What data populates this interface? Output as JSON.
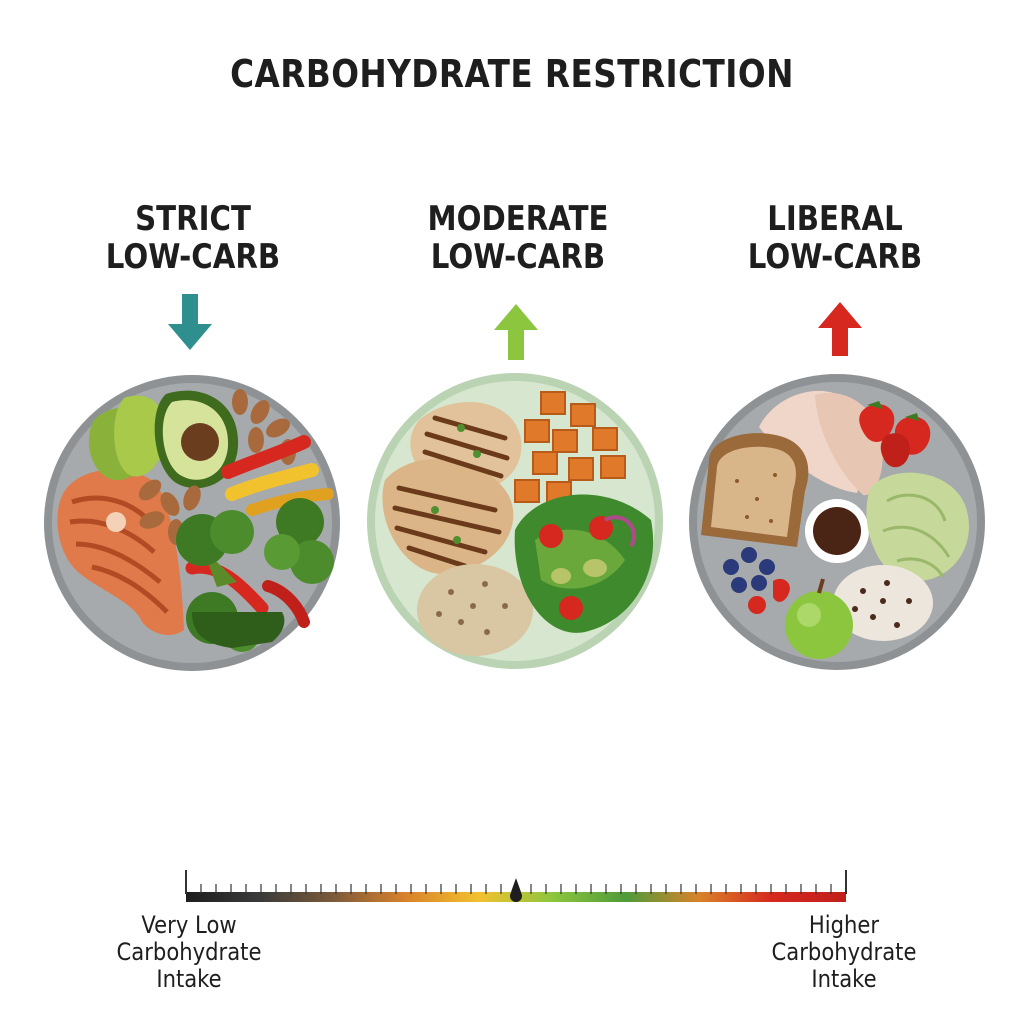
{
  "title": "CARBOHYDRATE RESTRICTION",
  "levels": [
    {
      "line1": "STRICT",
      "line2": "LOW-CARB",
      "arrow_direction": "down",
      "arrow_color": "#2f8f8f"
    },
    {
      "line1": "MODERATE",
      "line2": "LOW-CARB",
      "arrow_direction": "up",
      "arrow_color": "#8cc63f"
    },
    {
      "line1": "LIBERAL",
      "line2": "LOW-CARB",
      "arrow_direction": "up",
      "arrow_color": "#d6281e"
    }
  ],
  "scale": {
    "left_label": [
      "Very Low",
      "Carbohydrate",
      "Intake"
    ],
    "right_label": [
      "Higher",
      "Carbohydrate",
      "Intake"
    ],
    "gradient_colors": [
      "#1e1e1e",
      "#3a3a3a",
      "#7a5a3a",
      "#d9822b",
      "#f2c12e",
      "#8cc63f",
      "#4f9a3a",
      "#d9822b",
      "#d6281e",
      "#c0201a"
    ]
  },
  "plates": [
    {
      "name": "strict-plate",
      "foods": [
        "salmon",
        "avocado",
        "almonds",
        "bell-peppers",
        "broccoli",
        "spinach"
      ]
    },
    {
      "name": "moderate-plate",
      "foods": [
        "grilled-chicken",
        "sweet-potato",
        "quinoa",
        "salad"
      ]
    },
    {
      "name": "liberal-plate",
      "foods": [
        "turkey-slices",
        "whole-grain-bread",
        "dipping-sauce",
        "strawberries",
        "cabbage",
        "berries",
        "wild-rice",
        "apple"
      ]
    }
  ]
}
